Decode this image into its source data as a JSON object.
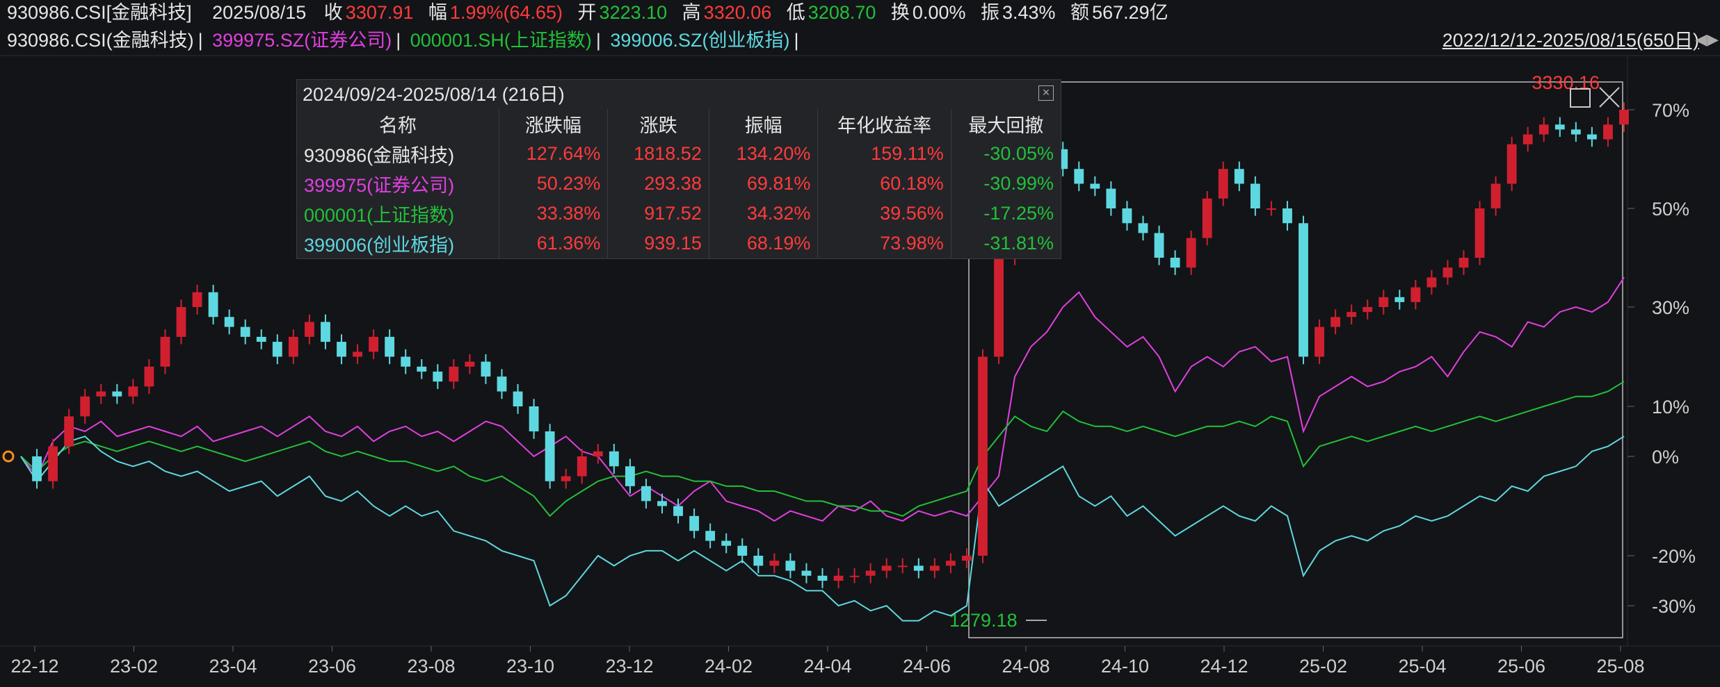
{
  "header": {
    "symbol": "930986.CSI[金融科技]",
    "date": "2025/08/15",
    "close_label": "收",
    "close": "3307.91",
    "change_label": "幅",
    "change": "1.99%(64.65)",
    "open_label": "开",
    "open": "3223.10",
    "high_label": "高",
    "high": "3320.06",
    "low_label": "低",
    "low": "3208.70",
    "turnover_label": "换",
    "turnover": "0.00%",
    "amplitude_label": "振",
    "amplitude": "3.43%",
    "amount_label": "额",
    "amount": "567.29亿"
  },
  "legend": {
    "items": [
      {
        "label": "930986.CSI(金融科技)",
        "color": "#e6e6e6"
      },
      {
        "label": "399975.SZ(证券公司)",
        "color": "#e040e0"
      },
      {
        "label": "000001.SH(上证指数)",
        "color": "#22c03a"
      },
      {
        "label": "399006.SZ(创业板指)",
        "color": "#5ed8e0"
      }
    ],
    "range": "2022/12/12-2025/08/15(650日)"
  },
  "stats_table": {
    "title": "2024/09/24-2025/08/14 (216日)",
    "columns": [
      "名称",
      "涨跌幅",
      "涨跌",
      "振幅",
      "年化收益率",
      "最大回撤"
    ],
    "rows": [
      {
        "name": "930986(金融科技)",
        "color": "#e6e6e6",
        "values": [
          "127.64%",
          "1818.52",
          "134.20%",
          "159.11%",
          "-30.05%"
        ]
      },
      {
        "name": "399975(证券公司)",
        "color": "#e040e0",
        "values": [
          "50.23%",
          "293.38",
          "69.81%",
          "60.18%",
          "-30.99%"
        ]
      },
      {
        "name": "000001(上证指数)",
        "color": "#22c03a",
        "values": [
          "33.38%",
          "917.52",
          "34.32%",
          "39.56%",
          "-17.25%"
        ]
      },
      {
        "name": "399006(创业板指)",
        "color": "#5ed8e0",
        "values": [
          "61.36%",
          "939.15",
          "68.19%",
          "73.98%",
          "-31.81%"
        ]
      }
    ]
  },
  "chart_data": {
    "type": "line",
    "y_ticks": [
      "70%",
      "50%",
      "30%",
      "10%",
      "0%",
      "-20%",
      "-30%"
    ],
    "y_tick_values": [
      70,
      50,
      30,
      10,
      0,
      -20,
      -30
    ],
    "x_ticks": [
      "22-12",
      "23-02",
      "23-04",
      "23-06",
      "23-08",
      "23-10",
      "23-12",
      "24-02",
      "24-04",
      "24-06",
      "24-08",
      "24-10",
      "24-12",
      "25-02",
      "25-04",
      "25-06",
      "25-08"
    ],
    "annotations": {
      "high": "3330.16",
      "low": "1279.18"
    },
    "colors": {
      "up": "#d02030",
      "down": "#5ed8e0"
    },
    "series": [
      {
        "name": "399975.SZ(证券公司)",
        "color": "#e040e0",
        "values": [
          0,
          -4,
          3,
          6,
          5,
          7,
          4,
          5,
          6,
          5,
          4,
          6,
          3,
          4,
          5,
          6,
          4,
          6,
          8,
          5,
          4,
          6,
          3,
          5,
          6,
          4,
          5,
          3,
          5,
          7,
          6,
          3,
          0,
          2,
          4,
          1,
          0,
          -4,
          -8,
          -6,
          -8,
          -10,
          -7,
          -5,
          -9,
          -10,
          -11,
          -13,
          -11,
          -12,
          -13,
          -10,
          -11,
          -9,
          -12,
          -13,
          -11,
          -12,
          -11,
          -12,
          -8,
          -4,
          16,
          22,
          25,
          30,
          33,
          28,
          25,
          22,
          24,
          20,
          13,
          18,
          20,
          18,
          21,
          22,
          19,
          20,
          5,
          12,
          14,
          16,
          14,
          15,
          17,
          18,
          20,
          16,
          21,
          25,
          24,
          22,
          27,
          26,
          29,
          30,
          29,
          31,
          36
        ]
      },
      {
        "name": "000001.SH(上证指数)",
        "color": "#22c03a",
        "values": [
          0,
          -3,
          0,
          2,
          3,
          2,
          1,
          2,
          3,
          2,
          1,
          2,
          1,
          0,
          -1,
          0,
          1,
          2,
          3,
          1,
          0,
          1,
          0,
          -1,
          -1,
          -2,
          -3,
          -2,
          -4,
          -5,
          -4,
          -6,
          -8,
          -12,
          -9,
          -7,
          -5,
          -4,
          -4,
          -3,
          -4,
          -4,
          -5,
          -5,
          -6,
          -6,
          -7,
          -7,
          -8,
          -9,
          -9,
          -10,
          -10,
          -11,
          -11,
          -12,
          -10,
          -9,
          -8,
          -7,
          0,
          4,
          8,
          6,
          5,
          9,
          7,
          6,
          6,
          5,
          6,
          5,
          4,
          5,
          6,
          6,
          7,
          6,
          8,
          7,
          -2,
          2,
          3,
          4,
          3,
          4,
          5,
          6,
          5,
          6,
          7,
          8,
          7,
          8,
          9,
          10,
          11,
          12,
          12,
          13,
          15
        ]
      },
      {
        "name": "399006.SZ(创业板指)",
        "color": "#5ed8e0",
        "values": [
          0,
          -5,
          -1,
          3,
          4,
          1,
          -1,
          -2,
          -1,
          -3,
          -4,
          -3,
          -5,
          -7,
          -6,
          -5,
          -8,
          -6,
          -4,
          -8,
          -9,
          -7,
          -10,
          -12,
          -10,
          -12,
          -11,
          -15,
          -16,
          -17,
          -19,
          -20,
          -21,
          -30,
          -28,
          -24,
          -20,
          -22,
          -20,
          -19,
          -19,
          -21,
          -19,
          -21,
          -23,
          -21,
          -24,
          -24,
          -25,
          -27,
          -27,
          -30,
          -29,
          -31,
          -30,
          -33,
          -33,
          -31,
          -32,
          -30,
          -5,
          -10,
          -8,
          -6,
          -4,
          -2,
          -8,
          -10,
          -8,
          -12,
          -10,
          -13,
          -16,
          -14,
          -12,
          -10,
          -12,
          -13,
          -10,
          -12,
          -24,
          -19,
          -17,
          -16,
          -17,
          -15,
          -14,
          -12,
          -13,
          -12,
          -10,
          -8,
          -9,
          -6,
          -7,
          -4,
          -3,
          -2,
          1,
          2,
          4
        ]
      },
      {
        "name": "930986.CSI(金融科技)",
        "color": "#e6e6e6",
        "type": "candle",
        "values": [
          0,
          -5,
          2,
          8,
          12,
          13,
          12,
          14,
          18,
          24,
          30,
          33,
          28,
          26,
          24,
          23,
          20,
          24,
          27,
          23,
          20,
          21,
          24,
          20,
          18,
          17,
          15,
          18,
          19,
          16,
          13,
          10,
          5,
          -5,
          -4,
          0,
          1,
          -2,
          -6,
          -9,
          -10,
          -12,
          -15,
          -17,
          -18,
          -20,
          -22,
          -21,
          -23,
          -24,
          -25,
          -24,
          -24,
          -23,
          -22,
          -22,
          -23,
          -22,
          -21,
          -20,
          20,
          40,
          55,
          60,
          62,
          58,
          55,
          54,
          50,
          47,
          45,
          40,
          38,
          44,
          52,
          58,
          55,
          50,
          50,
          47,
          20,
          26,
          28,
          29,
          30,
          32,
          31,
          34,
          36,
          38,
          40,
          50,
          55,
          63,
          65,
          67,
          66,
          65,
          64,
          67,
          70
        ]
      }
    ]
  }
}
